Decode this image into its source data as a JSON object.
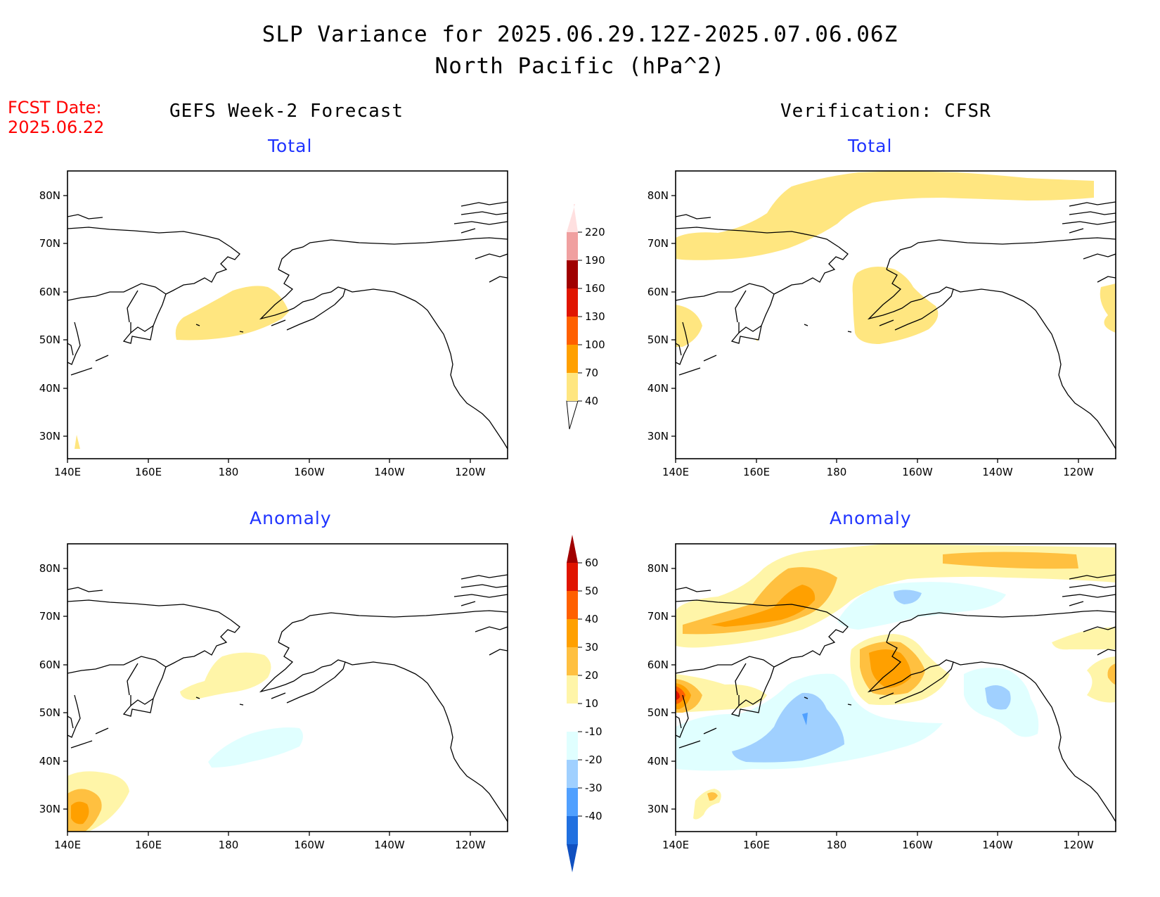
{
  "title": {
    "line1": "SLP Variance for 2025.06.29.12Z-2025.07.06.06Z",
    "line2": "North Pacific (hPa^2)"
  },
  "forecast_date": {
    "label": "FCST Date:",
    "value": "2025.06.22"
  },
  "columns": {
    "left": "GEFS Week-2 Forecast",
    "right": "Verification: CFSR"
  },
  "panels": {
    "fc_total": {
      "subtitle": "Total"
    },
    "vr_total": {
      "subtitle": "Total"
    },
    "fc_anom": {
      "subtitle": "Anomaly"
    },
    "vr_anom": {
      "subtitle": "Anomaly"
    }
  },
  "axes": {
    "lat_labels": [
      "80N",
      "70N",
      "60N",
      "50N",
      "40N",
      "30N"
    ],
    "lon_labels": [
      "140E",
      "160E",
      "180",
      "160W",
      "140W",
      "120W"
    ],
    "lat_range": [
      25,
      86
    ],
    "lon_range": [
      "140E",
      "110W"
    ]
  },
  "colorbars": {
    "total": {
      "labels": [
        "40",
        "70",
        "100",
        "130",
        "160",
        "190",
        "220"
      ],
      "colors": [
        "#ffe680",
        "#ffa000",
        "#ff6000",
        "#e01400",
        "#a00000",
        "#f0a0a0",
        "#ffe0e0"
      ]
    },
    "anomaly": {
      "labels": [
        "60",
        "50",
        "40",
        "30",
        "20",
        "10",
        "-10",
        "-20",
        "-30",
        "-40"
      ],
      "colors_top_to_bottom": [
        "#a00000",
        "#e01400",
        "#ff6000",
        "#ffa000",
        "#ffc040",
        "#fff5a8",
        "#ffffff",
        "#e0ffff",
        "#a0d0ff",
        "#50a0ff",
        "#2070e0",
        "#1050c0"
      ]
    }
  },
  "legend_colors": {
    "total_40_70": "#ffe680",
    "anom_10_20": "#fff5a8",
    "anom_20_30": "#ffc040",
    "anom_30_40": "#ffa000",
    "anom_40_50": "#ff6000",
    "anom_50_60": "#e01400",
    "anom_m10_m20": "#e0ffff",
    "anom_m20_m30": "#a0d0ff",
    "anom_m30_m40": "#50a0ff"
  }
}
